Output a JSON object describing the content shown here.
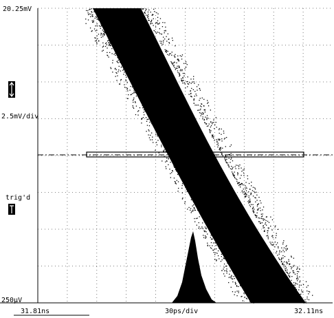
{
  "display": {
    "top_level": "20.25mV",
    "scale_vertical": "2.5mV/div",
    "trigger_status": "trig'd",
    "bottom_level": "250µV",
    "time_start": "31.81ns",
    "time_scale": "30ps/div",
    "time_end": "32.11ns"
  }
}
